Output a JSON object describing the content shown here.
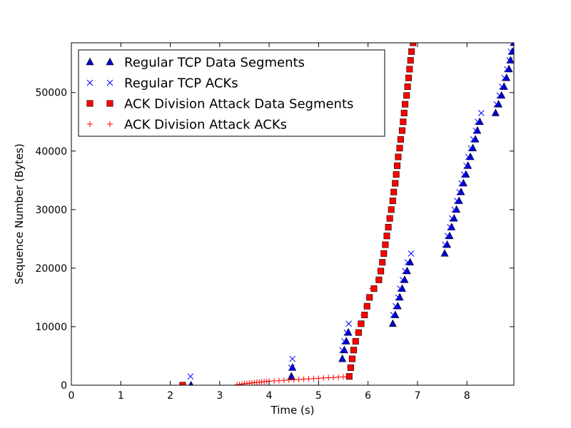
{
  "chart_data": {
    "type": "scatter",
    "title": "",
    "xlabel": "Time (s)",
    "ylabel": "Sequence Number (Bytes)",
    "xlim": [
      0,
      8.95
    ],
    "ylim": [
      0,
      58500
    ],
    "x_ticks": [
      0,
      1,
      2,
      3,
      4,
      5,
      6,
      7,
      8
    ],
    "y_ticks": [
      0,
      10000,
      20000,
      30000,
      40000,
      50000
    ],
    "grid": false,
    "legend_position": "top-left",
    "series": [
      {
        "name": "Regular TCP Data Segments",
        "marker": "triangle",
        "color": "#0000cc",
        "points": [
          [
            2.42,
            0
          ],
          [
            4.45,
            1500
          ],
          [
            4.47,
            3000
          ],
          [
            5.48,
            4500
          ],
          [
            5.52,
            6000
          ],
          [
            5.56,
            7500
          ],
          [
            5.6,
            9000
          ],
          [
            6.5,
            10500
          ],
          [
            6.55,
            12000
          ],
          [
            6.6,
            13500
          ],
          [
            6.64,
            15000
          ],
          [
            6.69,
            16500
          ],
          [
            6.74,
            18000
          ],
          [
            6.79,
            19500
          ],
          [
            6.85,
            21000
          ],
          [
            7.55,
            22500
          ],
          [
            7.6,
            24000
          ],
          [
            7.65,
            25500
          ],
          [
            7.69,
            27000
          ],
          [
            7.74,
            28500
          ],
          [
            7.79,
            30000
          ],
          [
            7.84,
            31500
          ],
          [
            7.88,
            33000
          ],
          [
            7.93,
            34500
          ],
          [
            7.98,
            36000
          ],
          [
            8.02,
            37500
          ],
          [
            8.07,
            39000
          ],
          [
            8.12,
            40500
          ],
          [
            8.17,
            42000
          ],
          [
            8.21,
            43500
          ],
          [
            8.26,
            45000
          ],
          [
            8.58,
            46500
          ],
          [
            8.64,
            48000
          ],
          [
            8.7,
            49500
          ],
          [
            8.75,
            51000
          ],
          [
            8.8,
            52500
          ],
          [
            8.85,
            54000
          ],
          [
            8.88,
            55500
          ],
          [
            8.92,
            57000
          ],
          [
            8.95,
            58500
          ]
        ]
      },
      {
        "name": "Regular TCP ACKs",
        "marker": "x",
        "color": "#0000ff",
        "points": [
          [
            2.41,
            1500
          ],
          [
            4.47,
            4500
          ],
          [
            4.45,
            3000
          ],
          [
            5.48,
            6000
          ],
          [
            5.52,
            7500
          ],
          [
            5.57,
            9000
          ],
          [
            5.61,
            10500
          ],
          [
            6.51,
            12000
          ],
          [
            6.56,
            13500
          ],
          [
            6.61,
            15000
          ],
          [
            6.65,
            16500
          ],
          [
            6.7,
            18000
          ],
          [
            6.75,
            19500
          ],
          [
            6.8,
            21000
          ],
          [
            6.87,
            22500
          ],
          [
            7.56,
            24000
          ],
          [
            7.61,
            25500
          ],
          [
            7.66,
            27000
          ],
          [
            7.7,
            28500
          ],
          [
            7.75,
            30000
          ],
          [
            7.8,
            31500
          ],
          [
            7.85,
            33000
          ],
          [
            7.89,
            34500
          ],
          [
            7.94,
            36000
          ],
          [
            7.99,
            37500
          ],
          [
            8.03,
            39000
          ],
          [
            8.08,
            40500
          ],
          [
            8.13,
            42000
          ],
          [
            8.18,
            43500
          ],
          [
            8.22,
            45000
          ],
          [
            8.29,
            46500
          ],
          [
            8.6,
            48000
          ],
          [
            8.66,
            49500
          ],
          [
            8.71,
            51000
          ],
          [
            8.76,
            52500
          ],
          [
            8.81,
            54000
          ],
          [
            8.86,
            55500
          ],
          [
            8.89,
            57000
          ],
          [
            8.93,
            58500
          ]
        ]
      },
      {
        "name": "ACK Division Attack Data Segments",
        "marker": "square",
        "color": "#ff0000",
        "points": [
          [
            2.25,
            0
          ],
          [
            5.62,
            1500
          ],
          [
            5.65,
            3000
          ],
          [
            5.68,
            4500
          ],
          [
            5.71,
            6000
          ],
          [
            5.75,
            7500
          ],
          [
            5.81,
            9000
          ],
          [
            5.86,
            10500
          ],
          [
            5.93,
            12000
          ],
          [
            5.98,
            13500
          ],
          [
            6.03,
            15000
          ],
          [
            6.12,
            16500
          ],
          [
            6.22,
            18000
          ],
          [
            6.26,
            19500
          ],
          [
            6.29,
            21000
          ],
          [
            6.32,
            22500
          ],
          [
            6.35,
            24000
          ],
          [
            6.38,
            25500
          ],
          [
            6.41,
            27000
          ],
          [
            6.44,
            28500
          ],
          [
            6.47,
            30000
          ],
          [
            6.5,
            31500
          ],
          [
            6.52,
            33000
          ],
          [
            6.55,
            34500
          ],
          [
            6.57,
            36000
          ],
          [
            6.59,
            37500
          ],
          [
            6.61,
            39000
          ],
          [
            6.64,
            40500
          ],
          [
            6.66,
            42000
          ],
          [
            6.69,
            43500
          ],
          [
            6.71,
            45000
          ],
          [
            6.73,
            46500
          ],
          [
            6.75,
            48000
          ],
          [
            6.78,
            49500
          ],
          [
            6.8,
            51000
          ],
          [
            6.82,
            52500
          ],
          [
            6.84,
            54000
          ],
          [
            6.86,
            55500
          ],
          [
            6.88,
            57000
          ],
          [
            6.91,
            58500
          ]
        ]
      },
      {
        "name": "ACK Division Attack ACKs",
        "marker": "plus",
        "color": "#ff0000",
        "points": [
          [
            3.35,
            60
          ],
          [
            3.4,
            120
          ],
          [
            3.45,
            180
          ],
          [
            3.5,
            240
          ],
          [
            3.55,
            290
          ],
          [
            3.6,
            340
          ],
          [
            3.65,
            390
          ],
          [
            3.7,
            440
          ],
          [
            3.75,
            480
          ],
          [
            3.8,
            520
          ],
          [
            3.85,
            560
          ],
          [
            3.9,
            600
          ],
          [
            3.95,
            640
          ],
          [
            4.0,
            680
          ],
          [
            4.1,
            730
          ],
          [
            4.2,
            780
          ],
          [
            4.3,
            830
          ],
          [
            4.4,
            880
          ],
          [
            4.5,
            930
          ],
          [
            4.6,
            980
          ],
          [
            4.7,
            1030
          ],
          [
            4.8,
            1080
          ],
          [
            4.9,
            1130
          ],
          [
            5.0,
            1180
          ],
          [
            5.1,
            1230
          ],
          [
            5.2,
            1280
          ],
          [
            5.3,
            1330
          ],
          [
            5.4,
            1380
          ],
          [
            5.5,
            1430
          ],
          [
            5.6,
            1500
          ],
          [
            5.63,
            3000
          ],
          [
            5.66,
            4500
          ],
          [
            5.69,
            6000
          ],
          [
            5.73,
            7500
          ],
          [
            5.78,
            9000
          ],
          [
            5.84,
            10500
          ],
          [
            5.9,
            12000
          ],
          [
            5.96,
            13500
          ],
          [
            6.01,
            15000
          ],
          [
            6.08,
            16500
          ],
          [
            6.2,
            18000
          ],
          [
            6.24,
            19500
          ],
          [
            6.28,
            21000
          ],
          [
            6.31,
            22500
          ],
          [
            6.34,
            24000
          ],
          [
            6.37,
            25500
          ],
          [
            6.4,
            27000
          ],
          [
            6.43,
            28500
          ],
          [
            6.46,
            30000
          ],
          [
            6.49,
            31500
          ],
          [
            6.51,
            33000
          ],
          [
            6.54,
            34500
          ],
          [
            6.56,
            36000
          ],
          [
            6.58,
            37500
          ],
          [
            6.6,
            39000
          ],
          [
            6.63,
            40500
          ],
          [
            6.65,
            42000
          ],
          [
            6.68,
            43500
          ],
          [
            6.7,
            45000
          ],
          [
            6.72,
            46500
          ],
          [
            6.74,
            48000
          ],
          [
            6.77,
            49500
          ],
          [
            6.79,
            51000
          ],
          [
            6.81,
            52500
          ],
          [
            6.83,
            54000
          ],
          [
            6.85,
            55500
          ],
          [
            6.87,
            57000
          ],
          [
            6.9,
            58500
          ]
        ]
      }
    ]
  }
}
